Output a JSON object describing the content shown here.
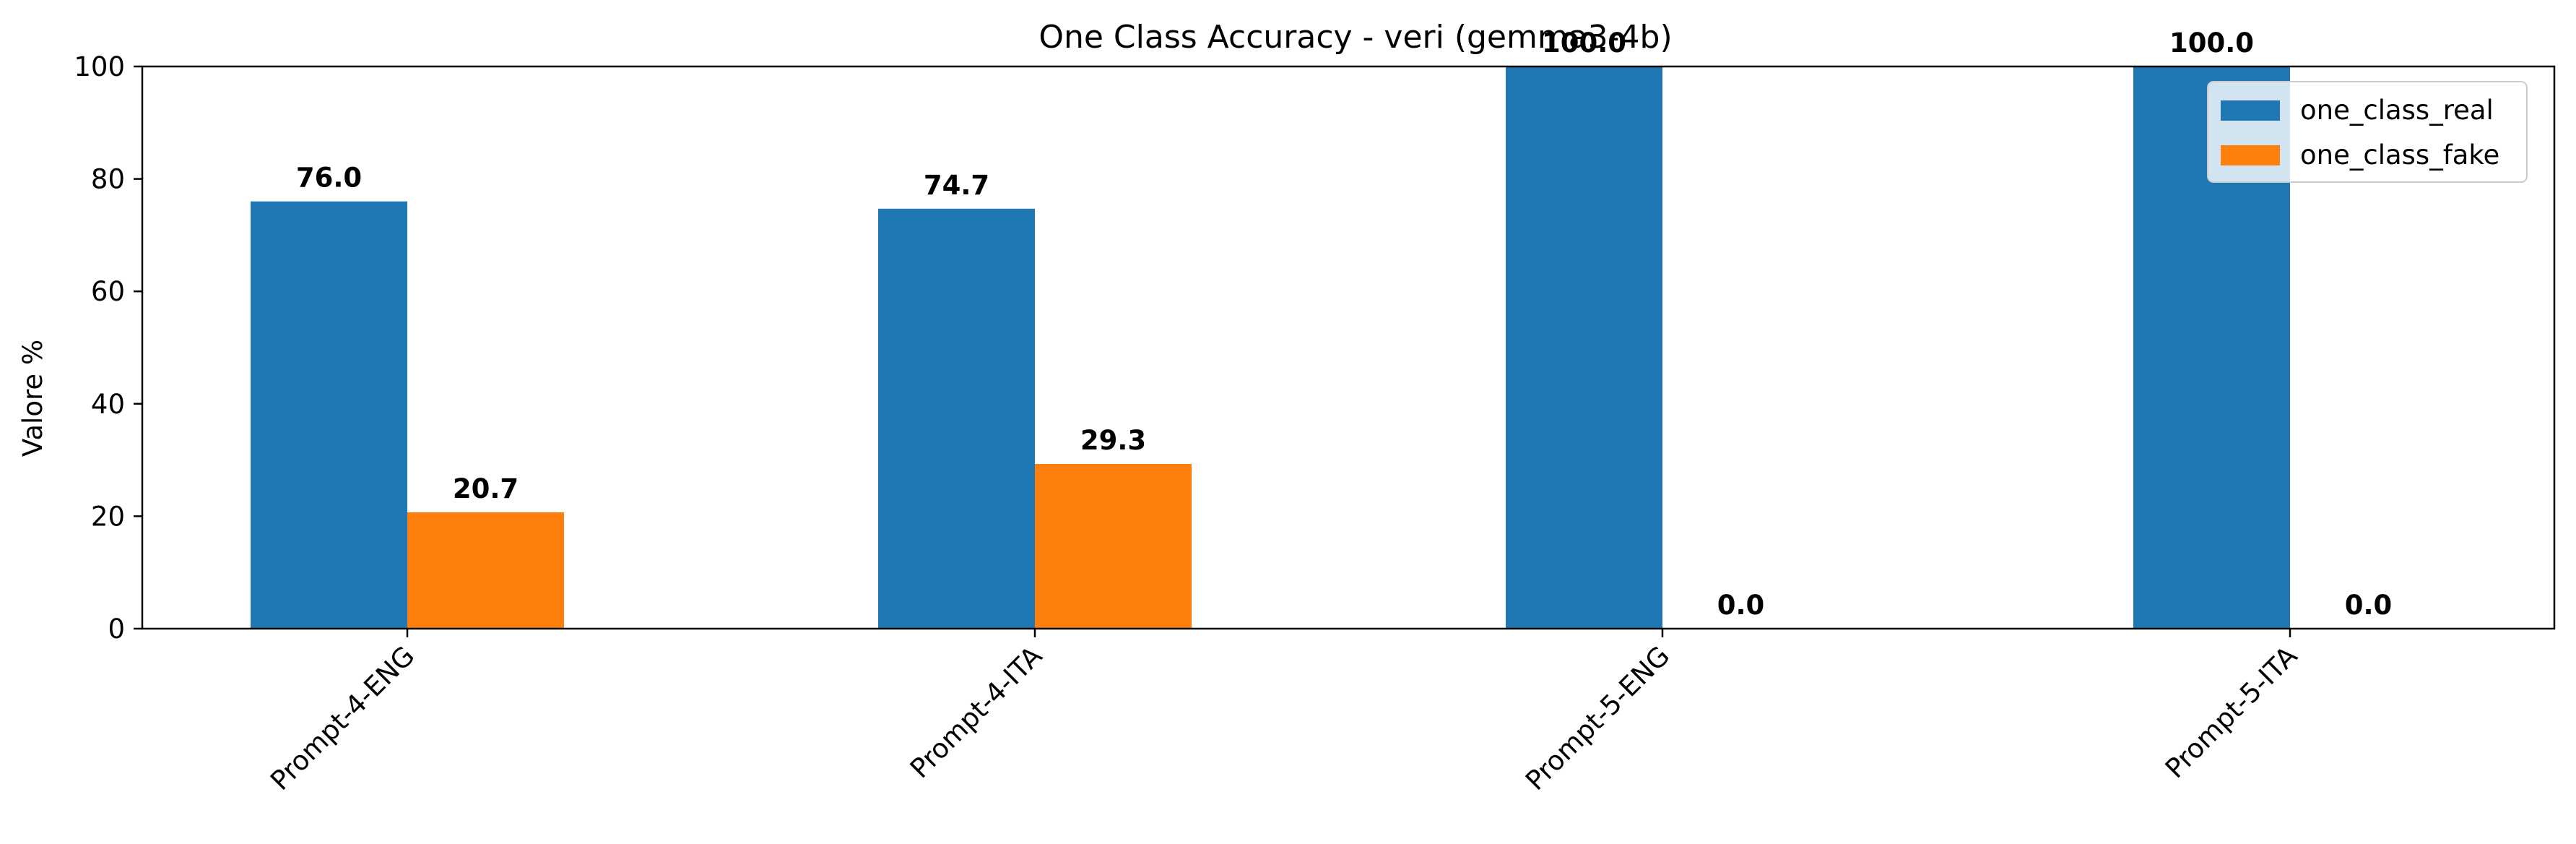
{
  "chart_data": {
    "type": "bar",
    "title": "One Class Accuracy - veri (gemma3-4b)",
    "xlabel": "",
    "ylabel": "Valore %",
    "categories": [
      "Prompt-4-ENG",
      "Prompt-4-ITA",
      "Prompt-5-ENG",
      "Prompt-5-ITA"
    ],
    "series": [
      {
        "name": "one_class_real",
        "values": [
          76.0,
          74.7,
          100.0,
          100.0
        ],
        "color": "#1f77b4"
      },
      {
        "name": "one_class_fake",
        "values": [
          20.7,
          29.3,
          0.0,
          0.0
        ],
        "color": "#ff7f0e"
      }
    ],
    "data_labels": [
      [
        "76.0",
        "74.7",
        "100.0",
        "100.0"
      ],
      [
        "20.7",
        "29.3",
        "0.0",
        "0.0"
      ]
    ],
    "yticks": [
      "0",
      "20",
      "40",
      "60",
      "80",
      "100"
    ],
    "ylim": [
      0,
      100
    ],
    "grid": false,
    "legend_position": "top-right"
  }
}
